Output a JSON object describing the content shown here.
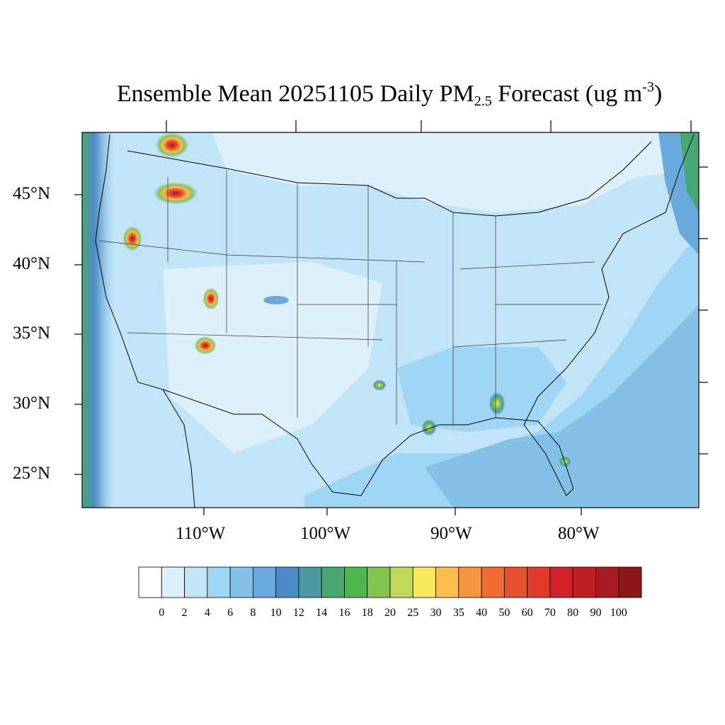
{
  "title": {
    "main": "Ensemble Mean 20251105 Daily PM",
    "sub": "2.5",
    "mid": " Forecast (ug m",
    "sup": "-3",
    "end": ")"
  },
  "lat_labels": [
    "45°N",
    "40°N",
    "35°N",
    "30°N",
    "25°N"
  ],
  "lon_labels": [
    "110°W",
    "100°W",
    "90°W",
    "80°W"
  ],
  "colorbar": {
    "labels": [
      "0",
      "2",
      "4",
      "6",
      "8",
      "10",
      "12",
      "14",
      "16",
      "18",
      "20",
      "25",
      "30",
      "35",
      "40",
      "50",
      "60",
      "70",
      "80",
      "90",
      "100"
    ],
    "colors": [
      "#ffffff",
      "#def1fb",
      "#c1e5f7",
      "#9fd6f3",
      "#84c1e6",
      "#69a9dc",
      "#4d8ac8",
      "#4a9aa0",
      "#48a874",
      "#4cb74a",
      "#85c54e",
      "#c2d65a",
      "#f7e75a",
      "#f9be4e",
      "#f6963e",
      "#f06c30",
      "#e8502b",
      "#e13a2a",
      "#d32029",
      "#be1e26",
      "#a81b22",
      "#8e1619"
    ]
  }
}
